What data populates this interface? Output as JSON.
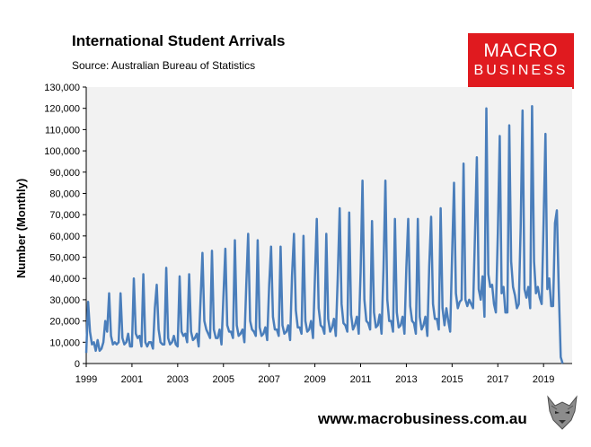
{
  "header": {
    "title": "International Student Arrivals",
    "source": "Source: Australian Bureau of Statistics"
  },
  "logo": {
    "line1": "MACRO",
    "line2": "BUSINESS",
    "color": "#e01a1f"
  },
  "footer": {
    "url": "www.macrobusiness.com.au"
  },
  "chart_data": {
    "type": "line",
    "title": "International Student Arrivals",
    "ylabel": "Number (Monthly)",
    "xlabel": "",
    "ylim": [
      0,
      130000
    ],
    "xlim": [
      1999.0,
      2020.25
    ],
    "y_ticks": [
      0,
      10000,
      20000,
      30000,
      40000,
      50000,
      60000,
      70000,
      80000,
      90000,
      100000,
      110000,
      120000,
      130000
    ],
    "y_tick_labels": [
      "0",
      "10,000",
      "20,000",
      "30,000",
      "40,000",
      "50,000",
      "60,000",
      "70,000",
      "80,000",
      "90,000",
      "100,000",
      "110,000",
      "120,000",
      "130,000"
    ],
    "x_ticks": [
      1999,
      2001,
      2003,
      2005,
      2007,
      2009,
      2011,
      2013,
      2015,
      2017,
      2019
    ],
    "x_tick_labels": [
      "1999",
      "2001",
      "2003",
      "2005",
      "2007",
      "2009",
      "2011",
      "2013",
      "2015",
      "2017",
      "2019"
    ],
    "grid": false,
    "legend": "none",
    "line_color": "#4a7ebb",
    "plot_background": "#f2f2f2",
    "series": [
      {
        "frequency": "monthly",
        "start": "1999-01",
        "values": [
          5000,
          29000,
          15000,
          9000,
          10000,
          6000,
          11000,
          6000,
          7000,
          10000,
          20000,
          15000,
          33000,
          13000,
          9000,
          10000,
          9000,
          10000,
          33000,
          12000,
          9000,
          10000,
          14000,
          8000,
          8000,
          40000,
          14000,
          12000,
          13000,
          8000,
          42000,
          10000,
          8000,
          10000,
          10000,
          7000,
          26000,
          37000,
          16000,
          10000,
          9000,
          9000,
          45000,
          12000,
          9000,
          10000,
          13000,
          9000,
          8000,
          41000,
          15000,
          13000,
          14000,
          10000,
          42000,
          15000,
          11000,
          12000,
          14000,
          8000,
          30000,
          52000,
          20000,
          16000,
          14000,
          12000,
          53000,
          16000,
          12000,
          12000,
          16000,
          9000,
          32000,
          54000,
          18000,
          15000,
          15000,
          12000,
          58000,
          18000,
          13000,
          14000,
          16000,
          10000,
          37000,
          61000,
          20000,
          16000,
          15000,
          13000,
          58000,
          17000,
          13000,
          14000,
          17000,
          11000,
          37000,
          55000,
          22000,
          16000,
          16000,
          13000,
          55000,
          18000,
          14000,
          15000,
          18000,
          11000,
          41000,
          61000,
          25000,
          17000,
          17000,
          14000,
          60000,
          20000,
          15000,
          16000,
          20000,
          12000,
          40000,
          68000,
          26000,
          18000,
          17000,
          14000,
          61000,
          21000,
          15000,
          17000,
          21000,
          13000,
          40000,
          73000,
          28000,
          19000,
          18000,
          15000,
          71000,
          23000,
          16000,
          18000,
          22000,
          14000,
          43000,
          86000,
          30000,
          20000,
          19000,
          16000,
          67000,
          24000,
          17000,
          18000,
          23000,
          14000,
          45000,
          86000,
          30000,
          20000,
          20000,
          15000,
          68000,
          24000,
          17000,
          18000,
          22000,
          14000,
          45000,
          68000,
          27000,
          20000,
          19000,
          14000,
          68000,
          22000,
          16000,
          18000,
          22000,
          13000,
          46000,
          69000,
          28000,
          21000,
          21000,
          16000,
          73000,
          26000,
          18000,
          26000,
          20000,
          15000,
          50000,
          85000,
          33000,
          26000,
          29000,
          30000,
          94000,
          30000,
          27000,
          30000,
          28000,
          26000,
          60000,
          97000,
          35000,
          30000,
          41000,
          22000,
          120000,
          42000,
          36000,
          37000,
          28000,
          24000,
          62000,
          107000,
          33000,
          36000,
          24000,
          24000,
          112000,
          48000,
          36000,
          32000,
          26000,
          28000,
          64000,
          119000,
          35000,
          31000,
          36000,
          26000,
          121000,
          48000,
          33000,
          36000,
          31000,
          28000,
          66000,
          108000,
          35000,
          40000,
          27000,
          27000,
          66000,
          72000,
          35000,
          3000,
          0
        ]
      }
    ]
  }
}
